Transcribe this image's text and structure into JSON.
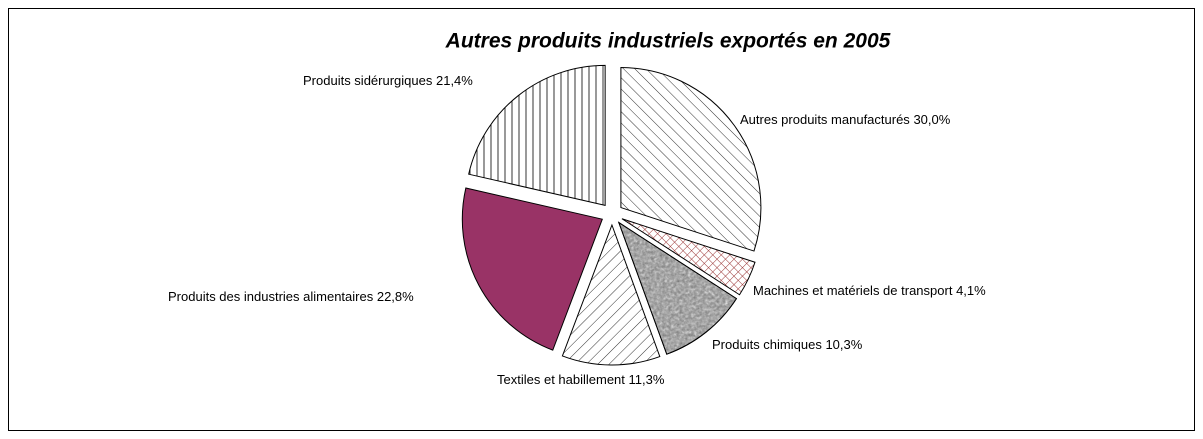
{
  "chart_data": {
    "type": "pie",
    "title": "Autres produits industriels exportés en 2005",
    "categories": [
      "Autres produits manufacturés",
      "Machines et matériels de transport",
      "Produits chimiques",
      "Textiles et habillement",
      "Produits des industries alimentaires",
      "Produits sidérurgiques"
    ],
    "values": [
      30.0,
      4.1,
      10.3,
      11.3,
      22.8,
      21.4
    ],
    "value_labels": [
      "30,0%",
      "4,1%",
      "10,3%",
      "11,3%",
      "22,8%",
      "21,4%"
    ],
    "colors": [
      "#000000",
      "#993333",
      "#888888",
      "#000000",
      "#993366",
      "#000000"
    ]
  }
}
